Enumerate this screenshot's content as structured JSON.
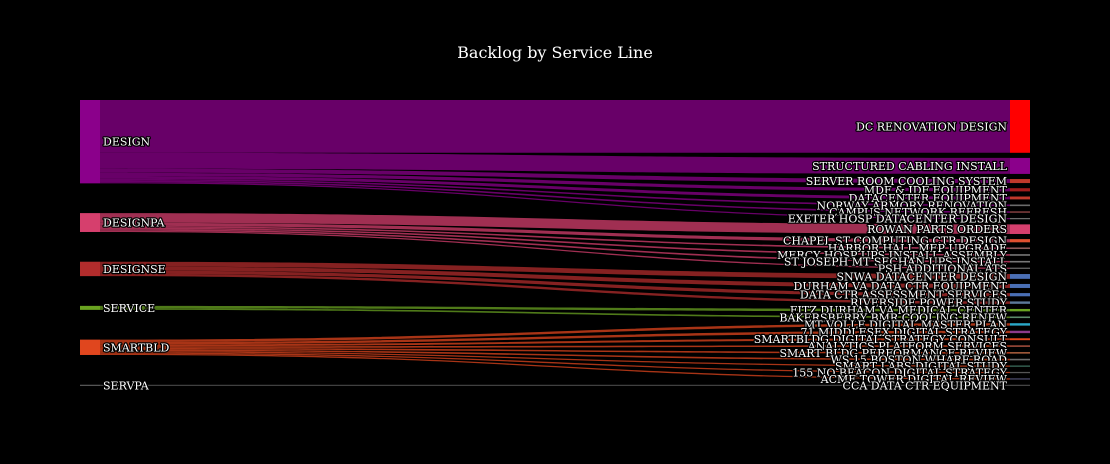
{
  "chart_data": {
    "type": "sankey",
    "title": "Backlog by Service Line",
    "sources": [
      {
        "name": "DESIGN",
        "color": "#8b008b"
      },
      {
        "name": "DESIGNPA",
        "color": "#d63f6d"
      },
      {
        "name": "DESIGNSE",
        "color": "#b22c2c"
      },
      {
        "name": "SERVICE",
        "color": "#6aa321"
      },
      {
        "name": "SMARTBLD",
        "color": "#e0461e"
      },
      {
        "name": "SERVPA",
        "color": "#555555"
      }
    ],
    "targets": [
      {
        "name": "DC RENOVATION DESIGN",
        "color": "#ff0000"
      },
      {
        "name": "STRUCTURED CABLING INSTALL",
        "color": "#8b008b"
      },
      {
        "name": "SERVER ROOM COOLING SYSTEM",
        "color": "#c0392b"
      },
      {
        "name": "MDF & IDF EQUIPMENT",
        "color": "#a01c1c"
      },
      {
        "name": "DATACENTER EQUIPMENT",
        "color": "#c0392b"
      },
      {
        "name": "NORWAY ARMORY RENOVATION",
        "color": "#6b6b6b"
      },
      {
        "name": "CAMPUS NETWORK REFRESH",
        "color": "#7a3b3b"
      },
      {
        "name": "EXETER HOSP DATACENTER DESIGN",
        "color": "#6b6b6b"
      },
      {
        "name": "ROWAN PARTS ORDERS",
        "color": "#d63f6d"
      },
      {
        "name": "CHAPEL ST COMPUTING CTR DESIGN",
        "color": "#e05030"
      },
      {
        "name": "HARBOR HALL MEP UPGRADE",
        "color": "#8a5a5a"
      },
      {
        "name": "MERCY HOSP UPS INSTALL ASSEMBLY",
        "color": "#777777"
      },
      {
        "name": "ST JOSEPH MT SECHAN UPS INSTALL",
        "color": "#777777"
      },
      {
        "name": "PSH ADDITIONAL ATS",
        "color": "#666666"
      },
      {
        "name": "SNWA DATACENTER DESIGN",
        "color": "#4a6fb5"
      },
      {
        "name": "DURHAM VA DATA CTR EQUIPMENT",
        "color": "#4a6fb5"
      },
      {
        "name": "DATA CTR ASSESSMENT SERVICES",
        "color": "#4a6fb5"
      },
      {
        "name": "RIVERSIDE POWER STUDY",
        "color": "#5c7a99"
      },
      {
        "name": "FITZ DURHAM VA MEDICAL CENTER",
        "color": "#6aa321"
      },
      {
        "name": "BAKERSBERRY BMR COOLING RENEW",
        "color": "#5c8a6a"
      },
      {
        "name": "MT VOLLE DIGITAL MASTER PLAN",
        "color": "#2aa8c8"
      },
      {
        "name": "71 MIDDLESEX DIGITAL STRATEGY",
        "color": "#8b3a8b"
      },
      {
        "name": "SMARTBLDG DIGITAL STRATEGY CONSULT",
        "color": "#e0461e"
      },
      {
        "name": "ANALYTICS PLATFORM SERVICES",
        "color": "#9c4a3a"
      },
      {
        "name": "SMART BLDG PERFORMANCE REVIEW",
        "color": "#a35a3a"
      },
      {
        "name": "WS 15 BOSTON WHARF ROAD",
        "color": "#6b6b6b"
      },
      {
        "name": "SMART LABS DIGITAL STUDY",
        "color": "#3a6b5a"
      },
      {
        "name": "155 NO BEACON DIGITAL STRATEGY",
        "color": "#555555"
      },
      {
        "name": "ACME TOWER DIGITAL REVIEW",
        "color": "#4a4a6a"
      },
      {
        "name": "CCA DATA CTR EQUIPMENT",
        "color": "#444444"
      }
    ],
    "links": [
      {
        "source": "DESIGN",
        "target": "DC RENOVATION DESIGN",
        "value": 33
      },
      {
        "source": "DESIGN",
        "target": "STRUCTURED CABLING INSTALL",
        "value": 10
      },
      {
        "source": "DESIGN",
        "target": "SERVER ROOM COOLING SYSTEM",
        "value": 2.5
      },
      {
        "source": "DESIGN",
        "target": "MDF & IDF EQUIPMENT",
        "value": 2
      },
      {
        "source": "DESIGN",
        "target": "DATACENTER EQUIPMENT",
        "value": 1.8
      },
      {
        "source": "DESIGN",
        "target": "NORWAY ARMORY RENOVATION",
        "value": 1
      },
      {
        "source": "DESIGN",
        "target": "CAMPUS NETWORK REFRESH",
        "value": 1
      },
      {
        "source": "DESIGN",
        "target": "EXETER HOSP DATACENTER DESIGN",
        "value": 0.8
      },
      {
        "source": "DESIGNPA",
        "target": "ROWAN PARTS ORDERS",
        "value": 6
      },
      {
        "source": "DESIGNPA",
        "target": "CHAPEL ST COMPUTING CTR DESIGN",
        "value": 2
      },
      {
        "source": "DESIGNPA",
        "target": "HARBOR HALL MEP UPGRADE",
        "value": 1
      },
      {
        "source": "DESIGNPA",
        "target": "MERCY HOSP UPS INSTALL ASSEMBLY",
        "value": 1
      },
      {
        "source": "DESIGNPA",
        "target": "ST JOSEPH MT SECHAN UPS INSTALL",
        "value": 1
      },
      {
        "source": "DESIGNPA",
        "target": "PSH ADDITIONAL ATS",
        "value": 0.8
      },
      {
        "source": "DESIGNSE",
        "target": "SNWA DATACENTER DESIGN",
        "value": 3
      },
      {
        "source": "DESIGNSE",
        "target": "DURHAM VA DATA CTR EQUIPMENT",
        "value": 2.5
      },
      {
        "source": "DESIGNSE",
        "target": "DATA CTR ASSESSMENT SERVICES",
        "value": 2
      },
      {
        "source": "DESIGNSE",
        "target": "RIVERSIDE POWER STUDY",
        "value": 1.5
      },
      {
        "source": "SERVICE",
        "target": "FITZ DURHAM VA MEDICAL CENTER",
        "value": 1.5
      },
      {
        "source": "SERVICE",
        "target": "BAKERSBERRY BMR COOLING RENEW",
        "value": 1
      },
      {
        "source": "SMARTBLD",
        "target": "MT VOLLE DIGITAL MASTER PLAN",
        "value": 1.5
      },
      {
        "source": "SMARTBLD",
        "target": "71 MIDDLESEX DIGITAL STRATEGY",
        "value": 1.5
      },
      {
        "source": "SMARTBLD",
        "target": "SMARTBLDG DIGITAL STRATEGY CONSULT",
        "value": 1.2
      },
      {
        "source": "SMARTBLD",
        "target": "ANALYTICS PLATFORM SERVICES",
        "value": 1
      },
      {
        "source": "SMARTBLD",
        "target": "SMART BLDG PERFORMANCE REVIEW",
        "value": 1
      },
      {
        "source": "SMARTBLD",
        "target": "WS 15 BOSTON WHARF ROAD",
        "value": 1
      },
      {
        "source": "SMARTBLD",
        "target": "SMART LABS DIGITAL STUDY",
        "value": 0.8
      },
      {
        "source": "SMARTBLD",
        "target": "155 NO BEACON DIGITAL STRATEGY",
        "value": 0.8
      },
      {
        "source": "SMARTBLD",
        "target": "ACME TOWER DIGITAL REVIEW",
        "value": 0.8
      },
      {
        "source": "SERVPA",
        "target": "CCA DATA CTR EQUIPMENT",
        "value": 0.8
      }
    ]
  }
}
